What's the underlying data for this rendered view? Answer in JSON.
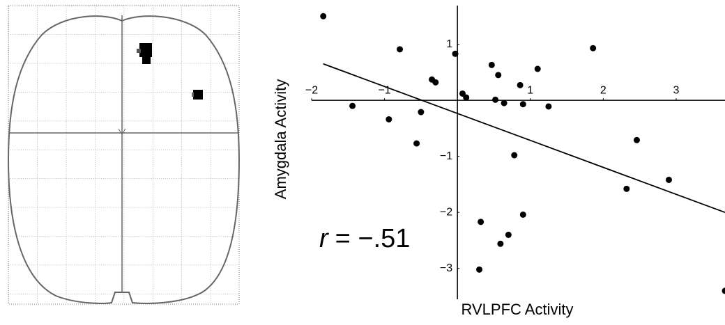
{
  "chart_data": {
    "type": "scatter",
    "x_label": "RVLPFC Activity",
    "y_label": "Amygdala Activity",
    "annotation": {
      "symbol": "r",
      "text": "= −.51"
    },
    "xlim": [
      -2,
      3.67
    ],
    "ylim": [
      -3.55,
      1.69
    ],
    "xticks": [
      {
        "value": -2,
        "label": "−2"
      },
      {
        "value": -1,
        "label": "−1"
      },
      1,
      2,
      3
    ],
    "yticks": [
      1,
      {
        "value": -1,
        "label": "−1"
      },
      {
        "value": -2,
        "label": "−2"
      },
      {
        "value": -3,
        "label": "−3"
      }
    ],
    "color": "#000000",
    "x": [
      -1.84,
      -0.79,
      -0.03,
      0.47,
      0.56,
      1.1,
      1.86,
      -0.35,
      -0.3,
      0.86,
      0.07,
      0.12,
      0.52,
      0.64,
      0.9,
      1.25,
      -1.44,
      -0.5,
      -0.94,
      -0.56,
      0.78,
      2.46,
      2.32,
      2.9,
      0.9,
      0.32,
      0.7,
      0.59,
      0.3,
      3.67
    ],
    "values": [
      1.5,
      0.91,
      0.83,
      0.63,
      0.45,
      0.56,
      0.93,
      0.37,
      0.32,
      0.27,
      0.12,
      0.05,
      0.01,
      -0.05,
      -0.07,
      -0.11,
      -0.1,
      -0.21,
      -0.34,
      -0.77,
      -0.98,
      -0.71,
      -1.58,
      -1.42,
      -2.04,
      -2.17,
      -2.4,
      -2.56,
      -3.02,
      -3.4
    ],
    "fit": {
      "x": [
        -1.84,
        3.67
      ],
      "values": [
        0.65,
        -2.0
      ]
    }
  }
}
